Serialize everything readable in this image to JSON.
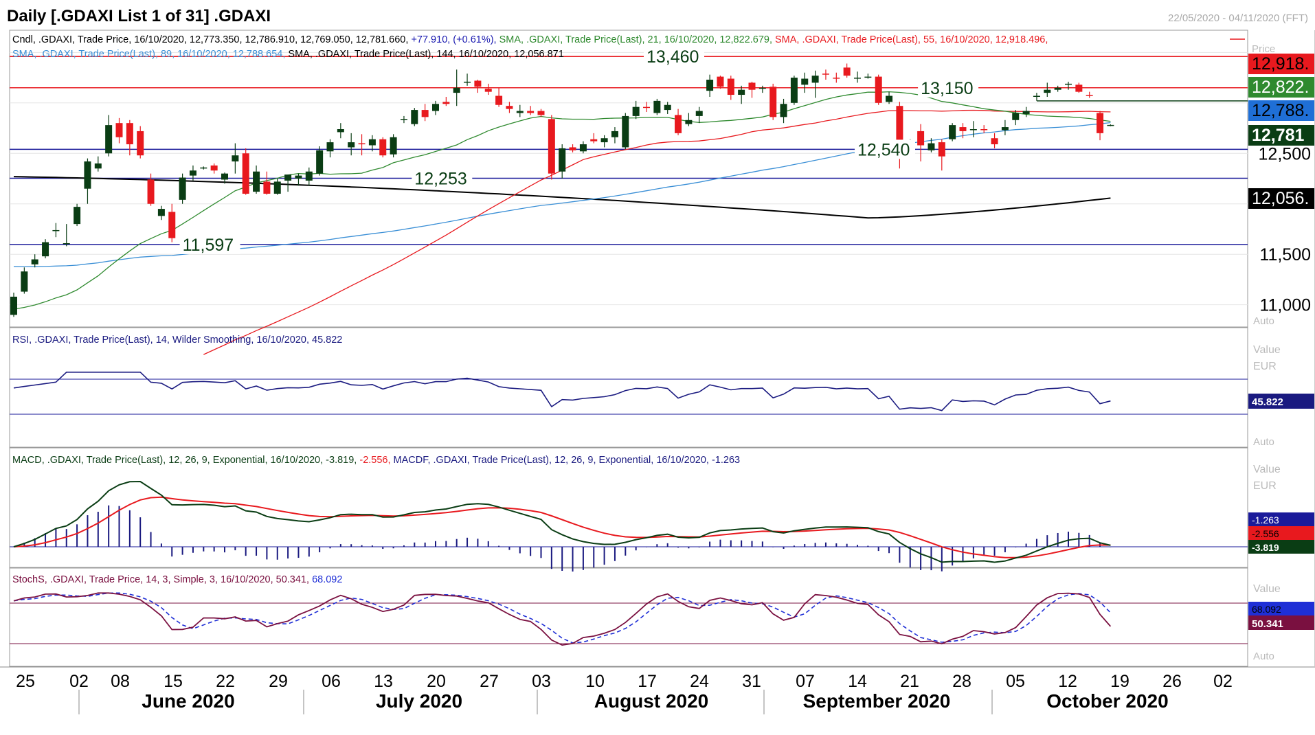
{
  "header": {
    "title": "Daily [.GDAXI List 1 of 31] .GDAXI",
    "date_range": "22/05/2020 - 04/11/2020 (FFT)"
  },
  "chart_data": {
    "type": "candlestick",
    "price_panel": {
      "legend_line1": {
        "cndl": "Cndl, .GDAXI, Trade Price, 16/10/2020, 12,773.350, 12,786.910, 12,769.050, 12,781.660, ",
        "change": "+77.910, (+0.61%), ",
        "sma21": "SMA, .GDAXI, Trade Price(Last),  21, 16/10/2020, 12,822.679, ",
        "sma55": "SMA, .GDAXI, Trade Price(Last),  55, 16/10/2020, 12,918.496,"
      },
      "legend_line2": {
        "sma89": "SMA, .GDAXI, Trade Price(Last),  89, 16/10/2020, 12,788.654, ",
        "sma144": "SMA, .GDAXI, Trade Price(Last),  144, 16/10/2020, 12,056.871"
      },
      "y_ticks": [
        "12,500",
        "11,500",
        "11,000"
      ],
      "y_range": [
        10780,
        13720
      ],
      "auto_label": "Auto",
      "price_label_partial": "Price",
      "tags": {
        "sma55": "12,918.",
        "sma21": "12,822.",
        "sma89": "12,788.",
        "last": "12,781",
        "sma144": "12,056."
      },
      "horizontal_levels": [
        {
          "value": 13460,
          "label": "13,460"
        },
        {
          "value": 13150,
          "label": "13,150"
        },
        {
          "value": 12540,
          "label": "12,540"
        },
        {
          "value": 12253,
          "label": "12,253"
        },
        {
          "value": 11597,
          "label": "11,597"
        }
      ],
      "candles": [
        {
          "o": 10900,
          "h": 11120,
          "l": 10880,
          "c": 11080
        },
        {
          "o": 11130,
          "h": 11370,
          "l": 11110,
          "c": 11330
        },
        {
          "o": 11400,
          "h": 11500,
          "l": 11370,
          "c": 11450
        },
        {
          "o": 11480,
          "h": 11650,
          "l": 11460,
          "c": 11620
        },
        {
          "o": 11730,
          "h": 11810,
          "l": 11670,
          "c": 11740
        },
        {
          "o": 11600,
          "h": 11800,
          "l": 11580,
          "c": 11610
        },
        {
          "o": 11800,
          "h": 12000,
          "l": 11780,
          "c": 11970
        },
        {
          "o": 12150,
          "h": 12450,
          "l": 12000,
          "c": 12420
        },
        {
          "o": 12350,
          "h": 12470,
          "l": 12320,
          "c": 12400
        },
        {
          "o": 12500,
          "h": 12880,
          "l": 12470,
          "c": 12780
        },
        {
          "o": 12800,
          "h": 12850,
          "l": 12600,
          "c": 12660
        },
        {
          "o": 12800,
          "h": 12830,
          "l": 12480,
          "c": 12590
        },
        {
          "o": 12720,
          "h": 12770,
          "l": 12450,
          "c": 12480
        },
        {
          "o": 12240,
          "h": 12300,
          "l": 11980,
          "c": 12000
        },
        {
          "o": 11880,
          "h": 11980,
          "l": 11840,
          "c": 11950
        },
        {
          "o": 11920,
          "h": 12000,
          "l": 11620,
          "c": 11660
        },
        {
          "o": 12040,
          "h": 12300,
          "l": 12000,
          "c": 12260
        },
        {
          "o": 12280,
          "h": 12380,
          "l": 12230,
          "c": 12330
        },
        {
          "o": 12360,
          "h": 12370,
          "l": 12340,
          "c": 12360
        },
        {
          "o": 12380,
          "h": 12400,
          "l": 12300,
          "c": 12330
        },
        {
          "o": 12240,
          "h": 12310,
          "l": 12200,
          "c": 12300
        },
        {
          "o": 12420,
          "h": 12600,
          "l": 12300,
          "c": 12480
        },
        {
          "o": 12500,
          "h": 12550,
          "l": 12090,
          "c": 12100
        },
        {
          "o": 12120,
          "h": 12380,
          "l": 12100,
          "c": 12320
        },
        {
          "o": 12220,
          "h": 12320,
          "l": 12090,
          "c": 12100
        },
        {
          "o": 12100,
          "h": 12250,
          "l": 12090,
          "c": 12220
        },
        {
          "o": 12230,
          "h": 12280,
          "l": 12120,
          "c": 12290
        },
        {
          "o": 12250,
          "h": 12300,
          "l": 12180,
          "c": 12280
        },
        {
          "o": 12230,
          "h": 12360,
          "l": 12180,
          "c": 12320
        },
        {
          "o": 12300,
          "h": 12570,
          "l": 12280,
          "c": 12530
        },
        {
          "o": 12520,
          "h": 12640,
          "l": 12460,
          "c": 12610
        },
        {
          "o": 12710,
          "h": 12800,
          "l": 12650,
          "c": 12740
        },
        {
          "o": 12560,
          "h": 12700,
          "l": 12480,
          "c": 12610
        },
        {
          "o": 12600,
          "h": 12690,
          "l": 12480,
          "c": 12590
        },
        {
          "o": 12580,
          "h": 12680,
          "l": 12520,
          "c": 12640
        },
        {
          "o": 12640,
          "h": 12660,
          "l": 12460,
          "c": 12480
        },
        {
          "o": 12490,
          "h": 12690,
          "l": 12460,
          "c": 12660
        },
        {
          "o": 12830,
          "h": 12870,
          "l": 12800,
          "c": 12840
        },
        {
          "o": 12790,
          "h": 12950,
          "l": 12770,
          "c": 12930
        },
        {
          "o": 12930,
          "h": 12990,
          "l": 12820,
          "c": 12860
        },
        {
          "o": 12920,
          "h": 13020,
          "l": 12880,
          "c": 12990
        },
        {
          "o": 13010,
          "h": 13060,
          "l": 12970,
          "c": 12990
        },
        {
          "o": 13100,
          "h": 13330,
          "l": 12970,
          "c": 13150
        },
        {
          "o": 13200,
          "h": 13290,
          "l": 13170,
          "c": 13210
        },
        {
          "o": 13220,
          "h": 13230,
          "l": 13100,
          "c": 13160
        },
        {
          "o": 13140,
          "h": 13190,
          "l": 13080,
          "c": 13110
        },
        {
          "o": 13070,
          "h": 13150,
          "l": 12960,
          "c": 12980
        },
        {
          "o": 12970,
          "h": 13010,
          "l": 12900,
          "c": 12940
        },
        {
          "o": 12900,
          "h": 12980,
          "l": 12860,
          "c": 12920
        },
        {
          "o": 12920,
          "h": 12970,
          "l": 12880,
          "c": 12900
        },
        {
          "o": 12920,
          "h": 12940,
          "l": 12860,
          "c": 12880
        },
        {
          "o": 12840,
          "h": 12880,
          "l": 12240,
          "c": 12300
        },
        {
          "o": 12320,
          "h": 12590,
          "l": 12250,
          "c": 12550
        },
        {
          "o": 12560,
          "h": 12590,
          "l": 12510,
          "c": 12530
        },
        {
          "o": 12520,
          "h": 12620,
          "l": 12500,
          "c": 12590
        },
        {
          "o": 12640,
          "h": 12700,
          "l": 12600,
          "c": 12620
        },
        {
          "o": 12610,
          "h": 12680,
          "l": 12560,
          "c": 12650
        },
        {
          "o": 12660,
          "h": 12760,
          "l": 12600,
          "c": 12720
        },
        {
          "o": 12560,
          "h": 12900,
          "l": 12540,
          "c": 12870
        },
        {
          "o": 12870,
          "h": 13020,
          "l": 12840,
          "c": 12960
        },
        {
          "o": 12960,
          "h": 13010,
          "l": 12910,
          "c": 12950
        },
        {
          "o": 12900,
          "h": 13040,
          "l": 12880,
          "c": 13020
        },
        {
          "o": 12930,
          "h": 13010,
          "l": 12890,
          "c": 12980
        },
        {
          "o": 12880,
          "h": 12940,
          "l": 12680,
          "c": 12700
        },
        {
          "o": 12790,
          "h": 12900,
          "l": 12770,
          "c": 12830
        },
        {
          "o": 12870,
          "h": 12960,
          "l": 12800,
          "c": 12920
        },
        {
          "o": 13120,
          "h": 13280,
          "l": 13060,
          "c": 13230
        },
        {
          "o": 13260,
          "h": 13270,
          "l": 13140,
          "c": 13160
        },
        {
          "o": 13240,
          "h": 13270,
          "l": 13030,
          "c": 13080
        },
        {
          "o": 13080,
          "h": 13170,
          "l": 12990,
          "c": 13130
        },
        {
          "o": 13200,
          "h": 13210,
          "l": 13050,
          "c": 13130
        },
        {
          "o": 13140,
          "h": 13170,
          "l": 13100,
          "c": 13150
        },
        {
          "o": 13160,
          "h": 13190,
          "l": 12830,
          "c": 12860
        },
        {
          "o": 12860,
          "h": 13040,
          "l": 12800,
          "c": 12990
        },
        {
          "o": 13000,
          "h": 13270,
          "l": 12980,
          "c": 13250
        },
        {
          "o": 13180,
          "h": 13300,
          "l": 13100,
          "c": 13240
        },
        {
          "o": 13200,
          "h": 13320,
          "l": 13050,
          "c": 13270
        },
        {
          "o": 13290,
          "h": 13330,
          "l": 13230,
          "c": 13280
        },
        {
          "o": 13250,
          "h": 13300,
          "l": 13200,
          "c": 13240
        },
        {
          "o": 13350,
          "h": 13390,
          "l": 13250,
          "c": 13270
        },
        {
          "o": 13240,
          "h": 13310,
          "l": 13200,
          "c": 13250
        },
        {
          "o": 13260,
          "h": 13290,
          "l": 13240,
          "c": 13260
        },
        {
          "o": 13260,
          "h": 13280,
          "l": 12980,
          "c": 13000
        },
        {
          "o": 13010,
          "h": 13110,
          "l": 12990,
          "c": 13070
        },
        {
          "o": 12970,
          "h": 13010,
          "l": 12350,
          "c": 12570
        },
        {
          "o": 12600,
          "h": 12640,
          "l": 12570,
          "c": 12610
        },
        {
          "o": 12720,
          "h": 12790,
          "l": 12420,
          "c": 12580
        },
        {
          "o": 12530,
          "h": 12650,
          "l": 12510,
          "c": 12600
        },
        {
          "o": 12610,
          "h": 12640,
          "l": 12330,
          "c": 12470
        },
        {
          "o": 12640,
          "h": 12800,
          "l": 12620,
          "c": 12780
        },
        {
          "o": 12760,
          "h": 12800,
          "l": 12650,
          "c": 12720
        },
        {
          "o": 12740,
          "h": 12820,
          "l": 12660,
          "c": 12740
        },
        {
          "o": 12740,
          "h": 12780,
          "l": 12700,
          "c": 12730
        },
        {
          "o": 12650,
          "h": 12700,
          "l": 12550,
          "c": 12590
        },
        {
          "o": 12730,
          "h": 12830,
          "l": 12680,
          "c": 12760
        },
        {
          "o": 12830,
          "h": 12930,
          "l": 12780,
          "c": 12900
        },
        {
          "o": 12890,
          "h": 12960,
          "l": 12860,
          "c": 12920
        },
        {
          "o": 13060,
          "h": 13100,
          "l": 13020,
          "c": 13070
        },
        {
          "o": 13100,
          "h": 13200,
          "l": 13060,
          "c": 13130
        },
        {
          "o": 13130,
          "h": 13170,
          "l": 13110,
          "c": 13150
        },
        {
          "o": 13180,
          "h": 13210,
          "l": 13130,
          "c": 13190
        },
        {
          "o": 13180,
          "h": 13200,
          "l": 13100,
          "c": 13110
        },
        {
          "o": 13080,
          "h": 13110,
          "l": 13050,
          "c": 13070
        },
        {
          "o": 12900,
          "h": 12920,
          "l": 12630,
          "c": 12700
        },
        {
          "o": 12773.35,
          "h": 12786.91,
          "l": 12769.05,
          "c": 12781.66
        }
      ]
    },
    "rsi_panel": {
      "legend": "RSI, .GDAXI, Trade Price(Last),  14, Wilder Smoothing, 16/10/2020, 45.822",
      "value_label": "Value",
      "unit_label": "EUR",
      "last_tag": "45.822",
      "auto_label": "Auto"
    },
    "macd_panel": {
      "legend_macd": "MACD, .GDAXI, Trade Price(Last),  12, 26, 9, Exponential, 16/10/2020, -3.819, ",
      "legend_signal": "-2.556, ",
      "legend_hist": "MACDF, .GDAXI, Trade Price(Last),  12, 26, 9, Exponential, 16/10/2020, -1.263",
      "value_label": "Value",
      "unit_label": "EUR",
      "tags": {
        "hist": "-1.263",
        "signal": "-2.556",
        "macd": "-3.819"
      }
    },
    "stoch_panel": {
      "legend_main": "StochS, .GDAXI, Trade Price,  14, 3, Simple, 3, 16/10/2020, 50.341, ",
      "legend_signal": "68.092",
      "value_label": "Value",
      "tags": {
        "signal": "68.092",
        "main": "50.341"
      },
      "auto_label": "Auto"
    },
    "x_axis": {
      "day_ticks": [
        "25",
        "02",
        "08",
        "15",
        "22",
        "29",
        "06",
        "13",
        "20",
        "27",
        "03",
        "10",
        "17",
        "24",
        "31",
        "07",
        "14",
        "21",
        "28",
        "05",
        "12",
        "19",
        "26",
        "02"
      ],
      "months": [
        "June 2020",
        "July 2020",
        "August 2020",
        "September 2020",
        "October 2020"
      ]
    },
    "colors": {
      "up": "#0a3d14",
      "down": "#e8191e",
      "sma21": "#2f8a2f",
      "sma55": "#e8191e",
      "sma89": "#3a8fd6",
      "sma144": "#000000",
      "rsi": "#1a1a80",
      "macd": "#0a3d14",
      "signal": "#e8191e",
      "hist": "#1a1a80",
      "stoch_main": "#7a1040",
      "stoch_signal": "#1f2fd6",
      "level_blue": "#1a1a9a",
      "level_red": "#e8191e",
      "level_green": "#0a3d14"
    }
  }
}
